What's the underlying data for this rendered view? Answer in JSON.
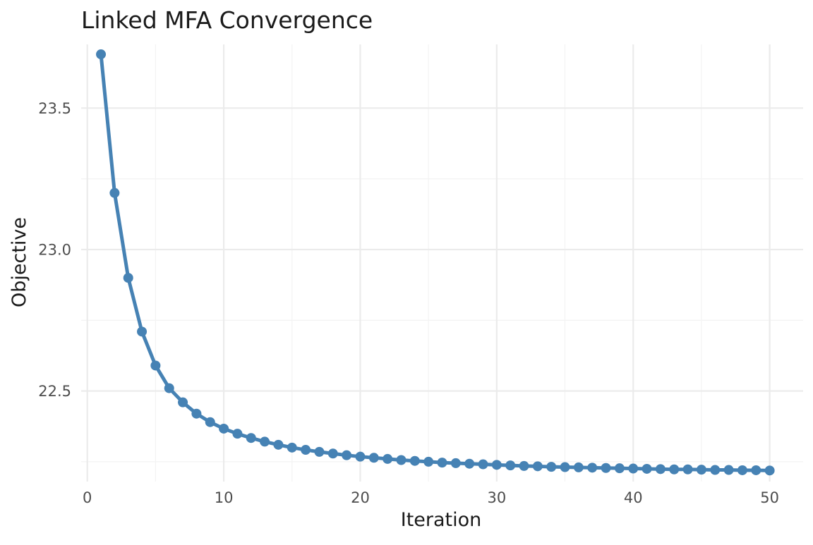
{
  "chart_data": {
    "type": "line",
    "title": "Linked MFA Convergence",
    "xlabel": "Iteration",
    "ylabel": "Objective",
    "xlim": [
      -0.45,
      52.45
    ],
    "ylim": [
      22.18,
      23.725
    ],
    "x_ticks": [
      0,
      10,
      20,
      30,
      40,
      50
    ],
    "x_tick_labels": [
      "0",
      "10",
      "20",
      "30",
      "40",
      "50"
    ],
    "x_minor_ticks": [
      5,
      15,
      25,
      35,
      45
    ],
    "y_ticks": [
      22.5,
      23.0,
      23.5
    ],
    "y_tick_labels": [
      "22.5",
      "23.0",
      "23.5"
    ],
    "y_minor_ticks": [
      22.25,
      22.75,
      23.25
    ],
    "grid": true,
    "legend": "none",
    "series_color": "#4682B4",
    "series": [
      {
        "x": [
          1,
          2,
          3,
          4,
          5,
          6,
          7,
          8,
          9,
          10,
          11,
          12,
          13,
          14,
          15,
          16,
          17,
          18,
          19,
          20,
          21,
          22,
          23,
          24,
          25,
          26,
          27,
          28,
          29,
          30,
          31,
          32,
          33,
          34,
          35,
          36,
          37,
          38,
          39,
          40,
          41,
          42,
          43,
          44,
          45,
          46,
          47,
          48,
          49,
          50
        ],
        "values": [
          23.69,
          23.2,
          22.9,
          22.71,
          22.59,
          22.51,
          22.46,
          22.42,
          22.39,
          22.367,
          22.349,
          22.334,
          22.321,
          22.31,
          22.3,
          22.292,
          22.285,
          22.279,
          22.273,
          22.268,
          22.264,
          22.26,
          22.256,
          22.253,
          22.25,
          22.247,
          22.245,
          22.243,
          22.241,
          22.239,
          22.237,
          22.235,
          22.234,
          22.232,
          22.231,
          22.23,
          22.229,
          22.228,
          22.227,
          22.226,
          22.225,
          22.224,
          22.223,
          22.223,
          22.222,
          22.221,
          22.221,
          22.22,
          22.22,
          22.219
        ]
      }
    ]
  }
}
